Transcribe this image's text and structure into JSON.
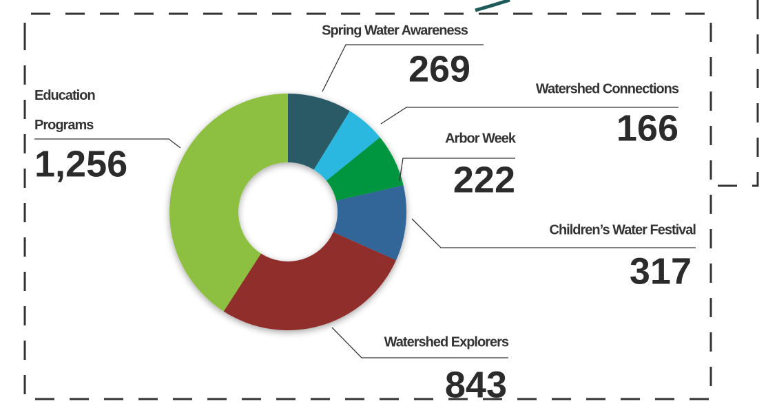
{
  "chart_data": {
    "type": "donut",
    "categories": [
      "Spring Water Awareness",
      "Watershed Connections",
      "Arbor Week",
      "Children’s Water Festival",
      "Watershed Explorers",
      "Education Programs"
    ],
    "values": [
      269,
      166,
      222,
      317,
      843,
      1256
    ],
    "value_labels": [
      "269",
      "166",
      "222",
      "317",
      "843",
      "1,256"
    ],
    "colors": [
      "#2a5a66",
      "#29b8e0",
      "#00963f",
      "#336699",
      "#8f2f2a",
      "#8dc03f"
    ]
  }
}
